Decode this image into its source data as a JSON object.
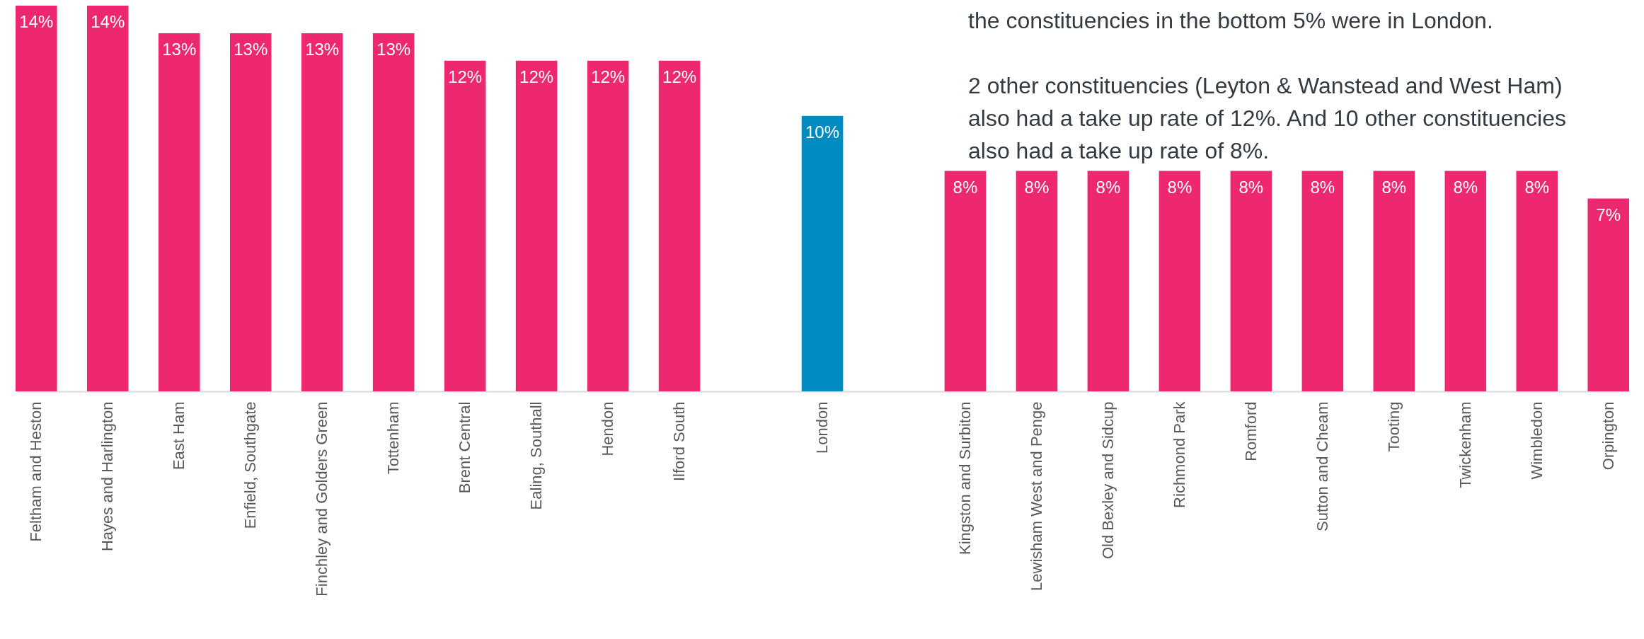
{
  "chart_data": {
    "type": "bar",
    "categories": [
      "Feltham and Heston",
      "Hayes and Harlington",
      "East Ham",
      "Enfield, Southgate",
      "Finchley and Golders Green",
      "Tottenham",
      "Brent Central",
      "Ealing, Southall",
      "Hendon",
      "Ilford South",
      null,
      "London",
      null,
      "Kingston and Surbiton",
      "Lewisham West and Penge",
      "Old Bexley and Sidcup",
      "Richmond Park",
      "Romford",
      "Sutton and Cheam",
      "Tooting",
      "Twickenham",
      "Wimbledon",
      "Orpington"
    ],
    "values": [
      14,
      14,
      13,
      13,
      13,
      13,
      12,
      12,
      12,
      12,
      null,
      10,
      null,
      8,
      8,
      8,
      8,
      8,
      8,
      8,
      8,
      8,
      7
    ],
    "colors": [
      "#ee2870",
      "#ee2870",
      "#ee2870",
      "#ee2870",
      "#ee2870",
      "#ee2870",
      "#ee2870",
      "#ee2870",
      "#ee2870",
      "#ee2870",
      null,
      "#008bc1",
      null,
      "#ee2870",
      "#ee2870",
      "#ee2870",
      "#ee2870",
      "#ee2870",
      "#ee2870",
      "#ee2870",
      "#ee2870",
      "#ee2870",
      "#ee2870"
    ],
    "value_labels": [
      "14%",
      "14%",
      "13%",
      "13%",
      "13%",
      "13%",
      "12%",
      "12%",
      "12%",
      "12%",
      null,
      "10%",
      null,
      "8%",
      "8%",
      "8%",
      "8%",
      "8%",
      "8%",
      "8%",
      "8%",
      "8%",
      "7%"
    ],
    "annotations": [
      "the constituencies in the bottom 5% were in London.",
      "2 other constituencies (Leyton & Wanstead and West Ham) also had a take up rate of 12%. And 10 other constituencies also had a take up rate of 8%."
    ]
  }
}
